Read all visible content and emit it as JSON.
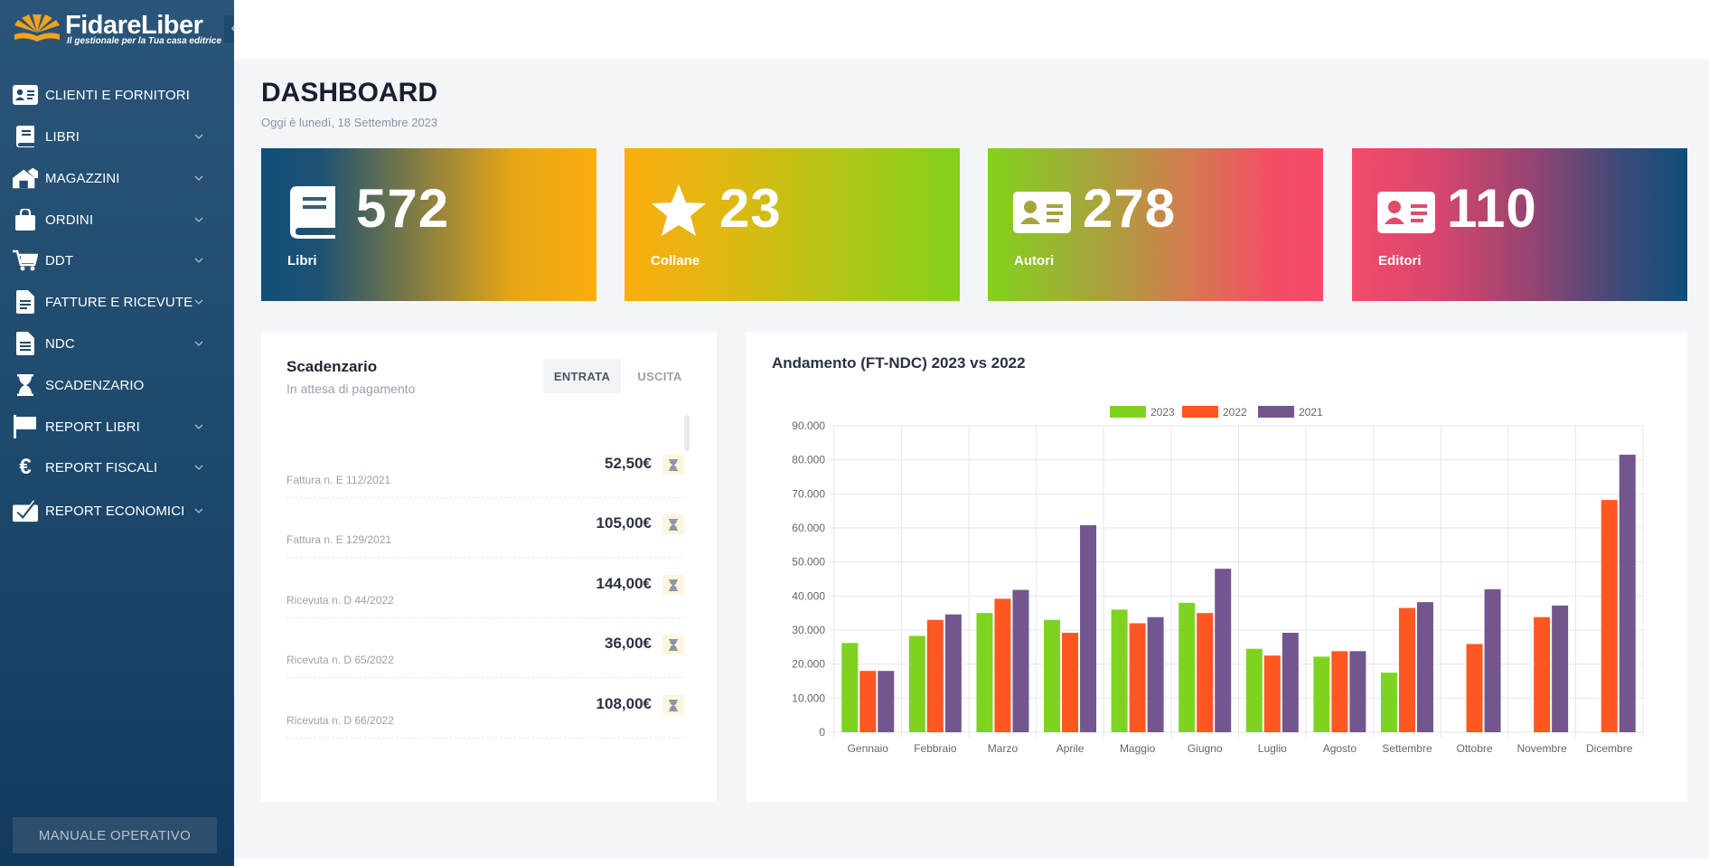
{
  "brand": {
    "name": "FidareLiber",
    "tagline": "Il gestionale per la Tua casa editrice"
  },
  "sidebar": {
    "collapse_icon": "«",
    "items": [
      {
        "label": "CLIENTI E FORNITORI",
        "icon": "contact-card-icon",
        "has_submenu": false
      },
      {
        "label": "LIBRI",
        "icon": "book-icon",
        "has_submenu": true
      },
      {
        "label": "MAGAZZINI",
        "icon": "warehouse-icon",
        "has_submenu": true
      },
      {
        "label": "ORDINI",
        "icon": "shopping-bag-icon",
        "has_submenu": true
      },
      {
        "label": "DDT",
        "icon": "cart-icon",
        "has_submenu": true
      },
      {
        "label": "FATTURE E RICEVUTE",
        "icon": "invoice-icon",
        "has_submenu": true
      },
      {
        "label": "NDC",
        "icon": "document-icon",
        "has_submenu": true
      },
      {
        "label": "SCADENZARIO",
        "icon": "hourglass-icon",
        "has_submenu": false
      },
      {
        "label": "REPORT LIBRI",
        "icon": "flag-icon",
        "has_submenu": true
      },
      {
        "label": "REPORT FISCALI",
        "icon": "euro-icon",
        "has_submenu": true
      },
      {
        "label": "REPORT ECONOMICI",
        "icon": "checked-box-icon",
        "has_submenu": true
      }
    ],
    "manual_label": "MANUALE OPERATIVO"
  },
  "page": {
    "title": "DASHBOARD",
    "date": "Oggi è lunedì, 18 Settembre 2023"
  },
  "stats": [
    {
      "value": "572",
      "label": "Libri",
      "icon": "book-icon"
    },
    {
      "value": "23",
      "label": "Collane",
      "icon": "star-icon"
    },
    {
      "value": "278",
      "label": "Autori",
      "icon": "contact-card-icon"
    },
    {
      "value": "110",
      "label": "Editori",
      "icon": "contact-card-icon"
    }
  ],
  "scadenzario": {
    "title": "Scadenzario",
    "subtitle": "In attesa di pagamento",
    "tabs": [
      "ENTRATA",
      "USCITA"
    ],
    "active_tab": "ENTRATA",
    "rows": [
      {
        "desc": "Fattura n. E 112/2021",
        "amount": "52,50€"
      },
      {
        "desc": "Fattura n. E 129/2021",
        "amount": "105,00€"
      },
      {
        "desc": "Ricevuta n. D 44/2022",
        "amount": "144,00€"
      },
      {
        "desc": "Ricevuta n. D 65/2022",
        "amount": "36,00€"
      },
      {
        "desc": "Ricevuta n. D 66/2022",
        "amount": "108,00€"
      }
    ]
  },
  "colors": {
    "series_2023": "#7ed321",
    "series_2022": "#ff5722",
    "series_2021": "#73568f",
    "pending_badge": "#fdf6de",
    "hourglass": "#8c93a5"
  },
  "chart_data": {
    "type": "bar",
    "title": "Andamento (FT-NDC) 2023 vs 2022",
    "categories": [
      "Gennaio",
      "Febbraio",
      "Marzo",
      "Aprile",
      "Maggio",
      "Giugno",
      "Luglio",
      "Agosto",
      "Settembre",
      "Ottobre",
      "Novembre",
      "Dicembre"
    ],
    "series": [
      {
        "name": "2023",
        "color": "#7ed321",
        "values": [
          26200,
          28300,
          35000,
          33000,
          36000,
          38000,
          24500,
          22200,
          17500,
          null,
          null,
          null
        ]
      },
      {
        "name": "2022",
        "color": "#ff5722",
        "values": [
          18000,
          33000,
          39200,
          29200,
          32000,
          35000,
          22500,
          23800,
          36500,
          25900,
          33800,
          68200
        ]
      },
      {
        "name": "2021",
        "color": "#73568f",
        "values": [
          18000,
          34600,
          41800,
          60800,
          33800,
          48000,
          29200,
          23800,
          38200,
          42000,
          37200,
          81500
        ]
      }
    ],
    "ylim": [
      0,
      90000
    ],
    "yticks": [
      "0",
      "10.000",
      "20.000",
      "30.000",
      "40.000",
      "50.000",
      "60.000",
      "70.000",
      "80.000",
      "90.000"
    ],
    "legend_position": "top",
    "grid": true
  }
}
